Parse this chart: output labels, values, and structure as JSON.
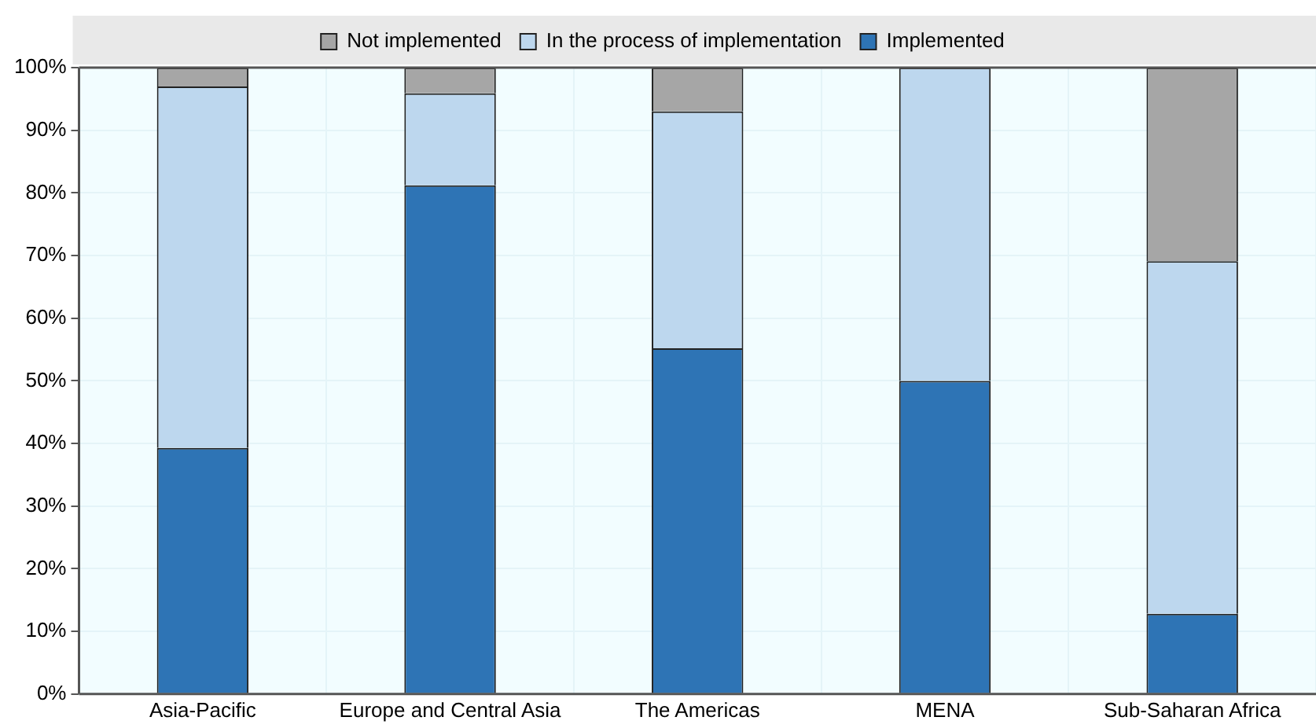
{
  "chart_data": {
    "type": "bar",
    "stacked": true,
    "categories": [
      "Asia-Pacific",
      "Europe and Central Asia",
      "The Americas",
      "MENA",
      "Sub-Saharan Africa"
    ],
    "series": [
      {
        "name": "Implemented",
        "color": "#2e74b5",
        "values": [
          39.3,
          81.2,
          55.2,
          50,
          12.8
        ]
      },
      {
        "name": "In the process of implementation",
        "color": "#bdd7ee",
        "values": [
          57.7,
          14.7,
          37.8,
          50,
          56.3
        ]
      },
      {
        "name": "Not implemented",
        "color": "#a6a6a6",
        "values": [
          3.0,
          4.1,
          7.0,
          0,
          30.9
        ]
      }
    ],
    "ylim": [
      0,
      100
    ],
    "yticks": [
      {
        "value": 0,
        "label": "0%"
      },
      {
        "value": 10,
        "label": "10%"
      },
      {
        "value": 20,
        "label": "20%"
      },
      {
        "value": 30,
        "label": "30%"
      },
      {
        "value": 40,
        "label": "40%"
      },
      {
        "value": 50,
        "label": "50%"
      },
      {
        "value": 60,
        "label": "60%"
      },
      {
        "value": 70,
        "label": "70%"
      },
      {
        "value": 80,
        "label": "80%"
      },
      {
        "value": 90,
        "label": "90%"
      },
      {
        "value": 100,
        "label": "100%"
      }
    ],
    "grid": true,
    "legend": "top"
  }
}
